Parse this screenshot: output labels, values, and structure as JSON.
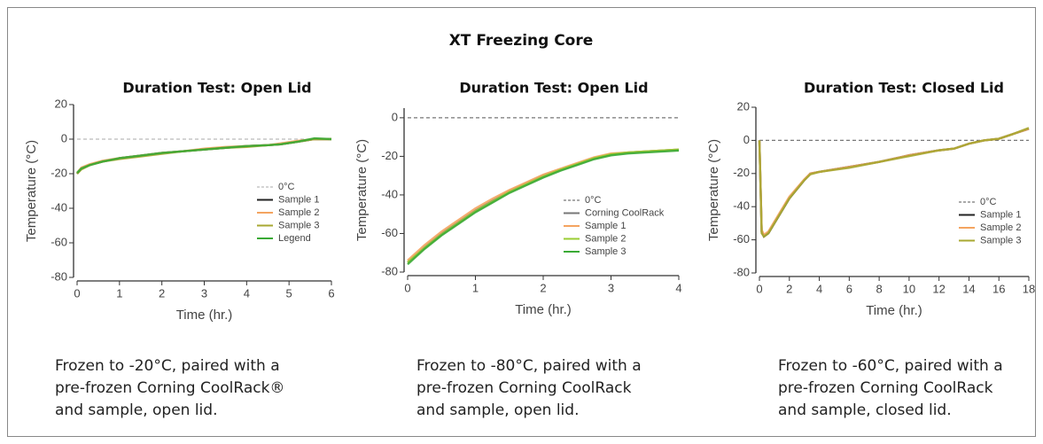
{
  "figure_title": "XT Freezing Core",
  "chart_data": [
    {
      "type": "line",
      "title": "Duration Test: Open Lid",
      "xlabel": "Time (hr.)",
      "ylabel": "Temperature (°C)",
      "xlim": [
        0,
        6
      ],
      "xticks": [
        0,
        1,
        2,
        3,
        4,
        5,
        6
      ],
      "ylim": [
        -80,
        20
      ],
      "yticks": [
        20,
        0,
        -20,
        -40,
        -60,
        -80
      ],
      "series": [
        {
          "name": "0°C",
          "color": "#bbbbbb",
          "dash": true,
          "x": [
            0,
            6
          ],
          "values": [
            0,
            0
          ]
        },
        {
          "name": "Sample 1",
          "color": "#222222",
          "x": [
            0,
            0.1,
            0.3,
            0.6,
            1,
            1.5,
            2,
            2.5,
            3,
            3.5,
            4,
            4.5,
            4.8,
            5.2,
            5.6,
            6
          ],
          "values": [
            -20,
            -17,
            -15,
            -13,
            -11,
            -9.5,
            -8,
            -7,
            -6,
            -5,
            -4,
            -3.5,
            -3,
            -1.5,
            0,
            0
          ]
        },
        {
          "name": "Sample 2",
          "color": "#f4a460",
          "x": [
            0,
            0.1,
            0.3,
            0.6,
            1,
            1.5,
            2,
            2.5,
            3,
            3.5,
            4,
            4.5,
            4.8,
            5.2,
            5.6,
            6
          ],
          "values": [
            -19.5,
            -16.5,
            -14.5,
            -12.5,
            -11,
            -9.5,
            -8,
            -7,
            -5.5,
            -4.5,
            -4,
            -3.5,
            -2.5,
            -1,
            0,
            0
          ]
        },
        {
          "name": "Sample 3",
          "color": "#a8a832",
          "x": [
            0,
            0.1,
            0.3,
            0.6,
            1,
            1.5,
            2,
            2.5,
            3,
            3.5,
            4,
            4.5,
            4.8,
            5.2,
            5.6,
            6
          ],
          "values": [
            -20,
            -17.5,
            -15,
            -13,
            -11.5,
            -10,
            -8.5,
            -7,
            -6,
            -5,
            -4.5,
            -3.5,
            -3,
            -1.5,
            0,
            0
          ]
        },
        {
          "name": "Legend",
          "color": "#3aaa35",
          "x": [
            0,
            0.1,
            0.3,
            0.6,
            1,
            1.5,
            2,
            2.5,
            3,
            3.5,
            4,
            4.5,
            4.8,
            5.2,
            5.6,
            6
          ],
          "values": [
            -19.5,
            -17,
            -15,
            -13,
            -11,
            -9.5,
            -8,
            -7,
            -6,
            -5,
            -4,
            -3.5,
            -3,
            -1.5,
            0.5,
            0
          ]
        }
      ],
      "caption": [
        "Frozen to -20°C, paired with a",
        "pre-frozen Corning CoolRack®",
        "and sample, open lid."
      ]
    },
    {
      "type": "line",
      "title": "Duration Test: Open Lid",
      "xlabel": "Time (hr.)",
      "ylabel": "Temperature (°C)",
      "xlim": [
        0,
        4
      ],
      "xticks": [
        0,
        1,
        2,
        3,
        4
      ],
      "ylim": [
        -80,
        5
      ],
      "yticks": [
        0,
        -20,
        -40,
        -60,
        -80
      ],
      "series": [
        {
          "name": "0°C",
          "color": "#777777",
          "dash": true,
          "x": [
            0,
            4
          ],
          "values": [
            0,
            0
          ]
        },
        {
          "name": "Corning CoolRack",
          "color": "#777777",
          "x": [
            0,
            0.25,
            0.5,
            0.75,
            1,
            1.25,
            1.5,
            1.75,
            2,
            2.25,
            2.5,
            2.75,
            3,
            3.25,
            3.5,
            4
          ],
          "values": [
            -75,
            -67,
            -60,
            -54,
            -48,
            -43,
            -38,
            -34,
            -30,
            -27,
            -24,
            -21,
            -19,
            -18,
            -17.5,
            -16.5
          ]
        },
        {
          "name": "Sample 1",
          "color": "#f4a460",
          "x": [
            0,
            0.25,
            0.5,
            0.75,
            1,
            1.25,
            1.5,
            1.75,
            2,
            2.25,
            2.5,
            2.75,
            3,
            3.25,
            3.5,
            4
          ],
          "values": [
            -74,
            -66,
            -59,
            -53,
            -47,
            -42,
            -37.5,
            -33.5,
            -29.5,
            -26.5,
            -23.5,
            -20.5,
            -18.5,
            -18,
            -17.5,
            -16.5
          ]
        },
        {
          "name": "Sample 2",
          "color": "#9acd32",
          "x": [
            0,
            0.25,
            0.5,
            0.75,
            1,
            1.25,
            1.5,
            1.75,
            2,
            2.25,
            2.5,
            2.75,
            3,
            3.25,
            3.5,
            4
          ],
          "values": [
            -75,
            -67.5,
            -60.5,
            -54.5,
            -48.5,
            -43.5,
            -38.5,
            -34.5,
            -30.5,
            -27,
            -24,
            -21,
            -19,
            -18,
            -17.5,
            -16.5
          ]
        },
        {
          "name": "Sample 3",
          "color": "#3aaa35",
          "x": [
            0,
            0.25,
            0.5,
            0.75,
            1,
            1.25,
            1.5,
            1.75,
            2,
            2.25,
            2.5,
            2.75,
            3,
            3.25,
            3.5,
            4
          ],
          "values": [
            -76,
            -68,
            -61,
            -55,
            -49,
            -44,
            -39,
            -35,
            -31,
            -27.5,
            -24.5,
            -21.5,
            -19.5,
            -18.5,
            -18,
            -17
          ]
        }
      ],
      "caption": [
        "Frozen to -80°C, paired with a",
        "pre-frozen Corning CoolRack",
        "and sample, open lid."
      ]
    },
    {
      "type": "line",
      "title": "Duration Test: Closed Lid",
      "xlabel": "Time (hr.)",
      "ylabel": "Temperature (°C)",
      "xlim": [
        0,
        18
      ],
      "xticks": [
        0,
        2,
        4,
        6,
        8,
        10,
        12,
        14,
        16,
        18
      ],
      "ylim": [
        -80,
        20
      ],
      "yticks": [
        20,
        0,
        -20,
        -40,
        -60,
        -80
      ],
      "series": [
        {
          "name": "0°C",
          "color": "#777777",
          "dash": true,
          "x": [
            0,
            18
          ],
          "values": [
            0,
            0
          ]
        },
        {
          "name": "Sample 1",
          "color": "#222222",
          "x": [
            0,
            0.15,
            0.3,
            0.6,
            1,
            2,
            3,
            3.4,
            4,
            6,
            8,
            10,
            12,
            13,
            14,
            15,
            16,
            17,
            18
          ],
          "values": [
            0,
            -55,
            -58,
            -56,
            -50,
            -35,
            -24,
            -20,
            -19,
            -16,
            -13,
            -9,
            -6,
            -5,
            -2,
            0,
            1,
            4,
            7
          ]
        },
        {
          "name": "Sample 2",
          "color": "#f4a460",
          "x": [
            0,
            0.15,
            0.3,
            0.6,
            1,
            2,
            3,
            3.4,
            4,
            6,
            8,
            10,
            12,
            13,
            14,
            15,
            16,
            17,
            18
          ],
          "values": [
            0,
            -54,
            -57,
            -55,
            -49,
            -34,
            -23.5,
            -20,
            -19,
            -16,
            -13,
            -9,
            -6,
            -5,
            -2,
            0,
            1,
            4,
            7
          ]
        },
        {
          "name": "Sample 3",
          "color": "#a8a832",
          "x": [
            0,
            0.15,
            0.3,
            0.6,
            1,
            2,
            3,
            3.4,
            4,
            6,
            8,
            10,
            12,
            13,
            14,
            15,
            16,
            17,
            18
          ],
          "values": [
            0,
            -56,
            -58,
            -56,
            -50,
            -35,
            -24,
            -20.5,
            -19,
            -16.5,
            -13,
            -9.5,
            -6,
            -5,
            -2,
            0,
            1,
            4,
            7.5
          ]
        }
      ],
      "caption": [
        "Frozen to -60°C, paired with a",
        "pre-frozen Corning CoolRack",
        "and sample, closed lid."
      ]
    }
  ]
}
